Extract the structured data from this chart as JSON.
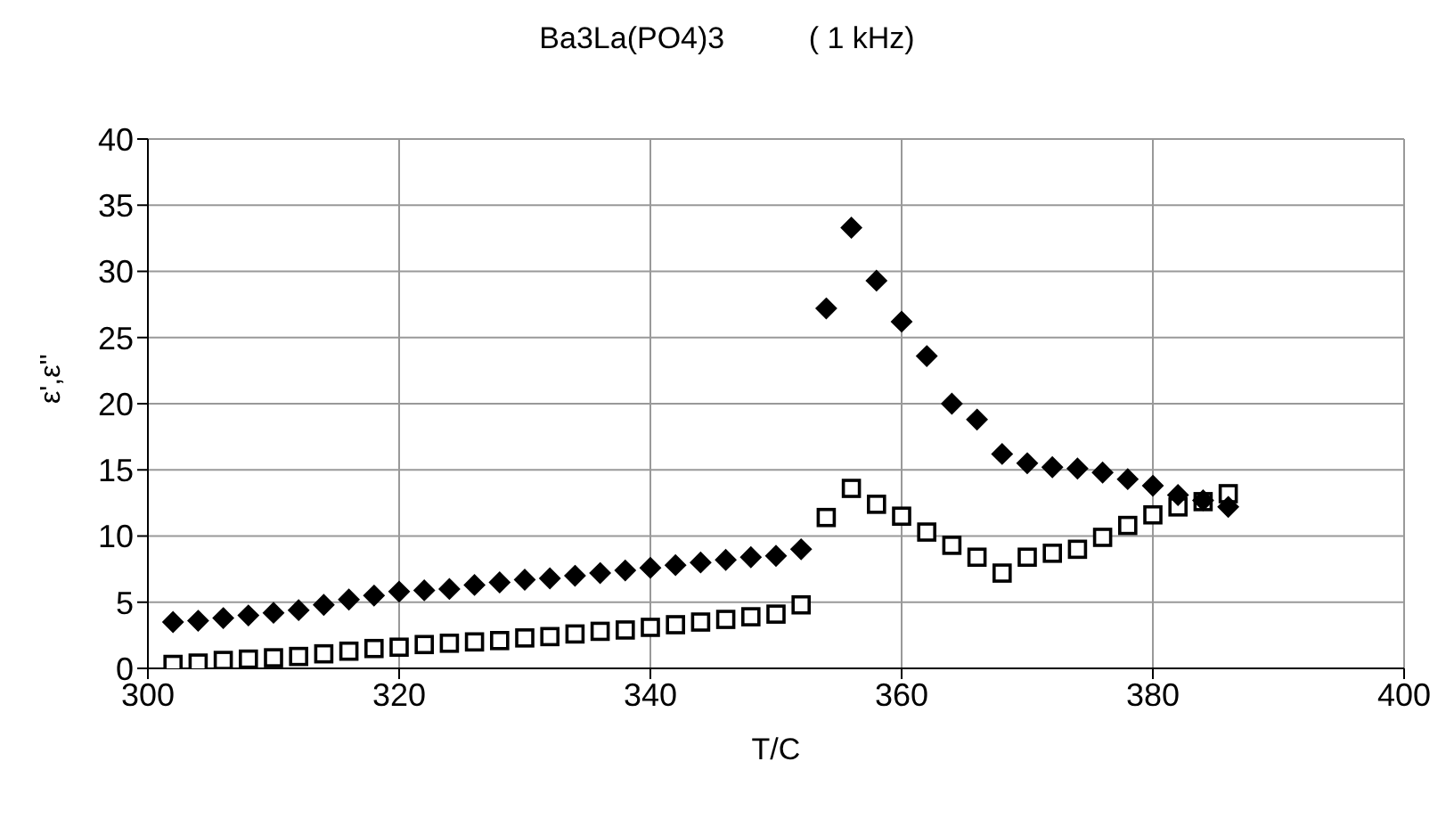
{
  "chart_data": {
    "type": "scatter",
    "title": "Ba3La(PO4)3          ( 1 kHz)",
    "xlabel": "T/C",
    "ylabel": "ε',ε''",
    "x": [
      302,
      304,
      306,
      308,
      310,
      312,
      314,
      316,
      318,
      320,
      322,
      324,
      326,
      328,
      330,
      332,
      334,
      336,
      338,
      340,
      342,
      344,
      346,
      348,
      350,
      352,
      354,
      356,
      358,
      360,
      362,
      364,
      366,
      368,
      370,
      372,
      374,
      376,
      378,
      380,
      382,
      384,
      386
    ],
    "series": [
      {
        "color": "#000000",
        "marker": "diamond",
        "values": [
          3.5,
          3.6,
          3.8,
          4.0,
          4.2,
          4.4,
          4.8,
          5.2,
          5.5,
          5.8,
          5.9,
          6.0,
          6.3,
          6.5,
          6.7,
          6.8,
          7.0,
          7.2,
          7.4,
          7.6,
          7.8,
          8.0,
          8.2,
          8.4,
          8.5,
          9.0,
          27.2,
          33.3,
          29.3,
          26.2,
          23.6,
          20.0,
          18.8,
          16.2,
          15.5,
          15.2,
          15.1,
          14.8,
          14.3,
          13.8,
          13.1,
          12.7,
          12.2
        ]
      },
      {
        "color": "#000000",
        "marker": "square",
        "values": [
          0.3,
          0.4,
          0.6,
          0.7,
          0.8,
          0.9,
          1.1,
          1.3,
          1.5,
          1.6,
          1.8,
          1.9,
          2.0,
          2.1,
          2.3,
          2.4,
          2.6,
          2.8,
          2.9,
          3.1,
          3.3,
          3.5,
          3.7,
          3.9,
          4.1,
          4.8,
          11.4,
          13.6,
          12.4,
          11.5,
          10.3,
          9.3,
          8.4,
          7.2,
          8.4,
          8.7,
          9.0,
          9.9,
          10.8,
          11.6,
          12.2,
          12.6,
          13.2
        ]
      }
    ],
    "xlim": [
      300,
      400
    ],
    "xticks": [
      300,
      320,
      340,
      360,
      380,
      400
    ],
    "ylim": [
      0,
      40
    ],
    "yticks": [
      0,
      5,
      10,
      15,
      20,
      25,
      30,
      35,
      40
    ],
    "grid": true
  }
}
